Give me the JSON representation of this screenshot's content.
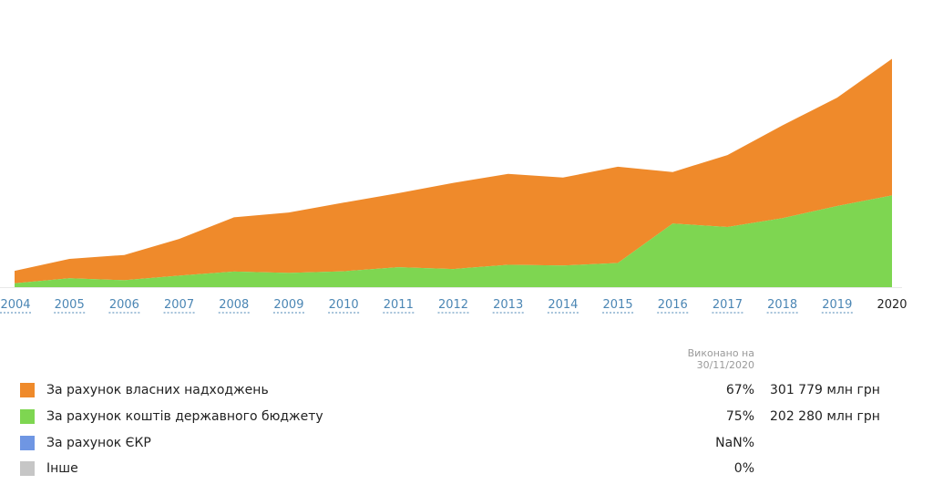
{
  "chart_data": {
    "type": "area",
    "stacked": true,
    "x": [
      "2004",
      "2005",
      "2006",
      "2007",
      "2008",
      "2009",
      "2010",
      "2011",
      "2012",
      "2013",
      "2014",
      "2015",
      "2016",
      "2017",
      "2018",
      "2019",
      "2020"
    ],
    "ylim": [
      0,
      1
    ],
    "series": [
      {
        "name": "За рахунок ЄКР",
        "color": "#6f96e3",
        "values": [
          0.001,
          0.001,
          0.001,
          0.002,
          0.004,
          0.002,
          0.001,
          0.001,
          0.001,
          0.001,
          0.001,
          0.001,
          0.001,
          0.001,
          0.001,
          0.002,
          0.003
        ]
      },
      {
        "name": "За рахунок коштів державного бюджету",
        "color": "#7ed651",
        "values": [
          0.02,
          0.042,
          0.033,
          0.052,
          0.068,
          0.064,
          0.072,
          0.09,
          0.082,
          0.1,
          0.097,
          0.108,
          0.28,
          0.265,
          0.303,
          0.355,
          0.4
        ]
      },
      {
        "name": "За рахунок власних надходжень",
        "color": "#ef8a2b",
        "values": [
          0.054,
          0.084,
          0.11,
          0.16,
          0.236,
          0.263,
          0.299,
          0.322,
          0.375,
          0.396,
          0.383,
          0.419,
          0.224,
          0.313,
          0.404,
          0.472,
          0.595
        ]
      }
    ]
  },
  "legend": {
    "executed_line1": "Виконано на",
    "executed_line2": "30/11/2020",
    "items": [
      {
        "label": "За рахунок власних надходжень",
        "color": "#ef8a2b",
        "percent": "67%",
        "amount": "301 779 млн грн"
      },
      {
        "label": "За рахунок коштів державного бюджету",
        "color": "#7ed651",
        "percent": "75%",
        "amount": "202 280 млн грн"
      },
      {
        "label": "За рахунок ЄКР",
        "color": "#6f96e3",
        "percent": "NaN%",
        "amount": ""
      },
      {
        "label": "Інше",
        "color": "#c6c6c6",
        "percent": "0%",
        "amount": ""
      }
    ]
  },
  "colors": {
    "axis_link": "#4b86b4",
    "axis_active": "#222222"
  },
  "active_year": "2020"
}
